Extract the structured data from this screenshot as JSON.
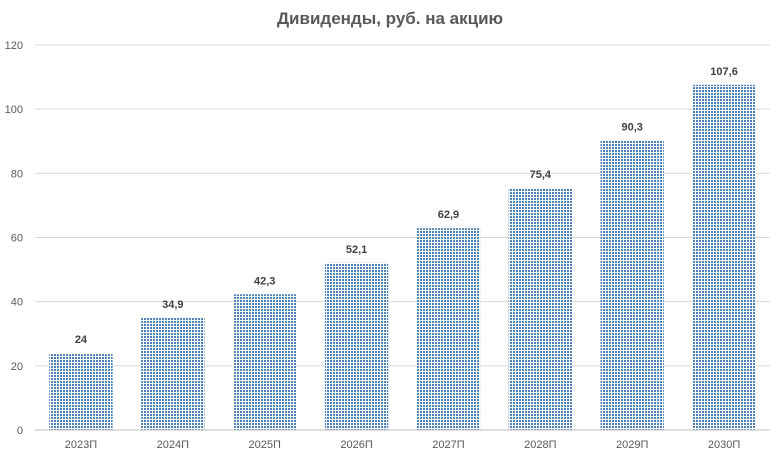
{
  "chart_data": {
    "type": "bar",
    "title": "Дивиденды, руб. на акцию",
    "categories": [
      "2023П",
      "2024П",
      "2025П",
      "2026П",
      "2027П",
      "2028П",
      "2029П",
      "2030П"
    ],
    "values": [
      24,
      34.9,
      42.3,
      52.1,
      62.9,
      75.4,
      90.3,
      107.6
    ],
    "value_labels": [
      "24",
      "34,9",
      "42,3",
      "52,1",
      "62,9",
      "75,4",
      "90,3",
      "107,6"
    ],
    "ylim": [
      0,
      120
    ],
    "yticks": [
      "0",
      "20",
      "40",
      "60",
      "80",
      "100",
      "120"
    ],
    "xlabel": "",
    "ylabel": "",
    "grid": true,
    "legend": "none",
    "bar_color": "#4472c4",
    "bar_fill": "pattern"
  }
}
